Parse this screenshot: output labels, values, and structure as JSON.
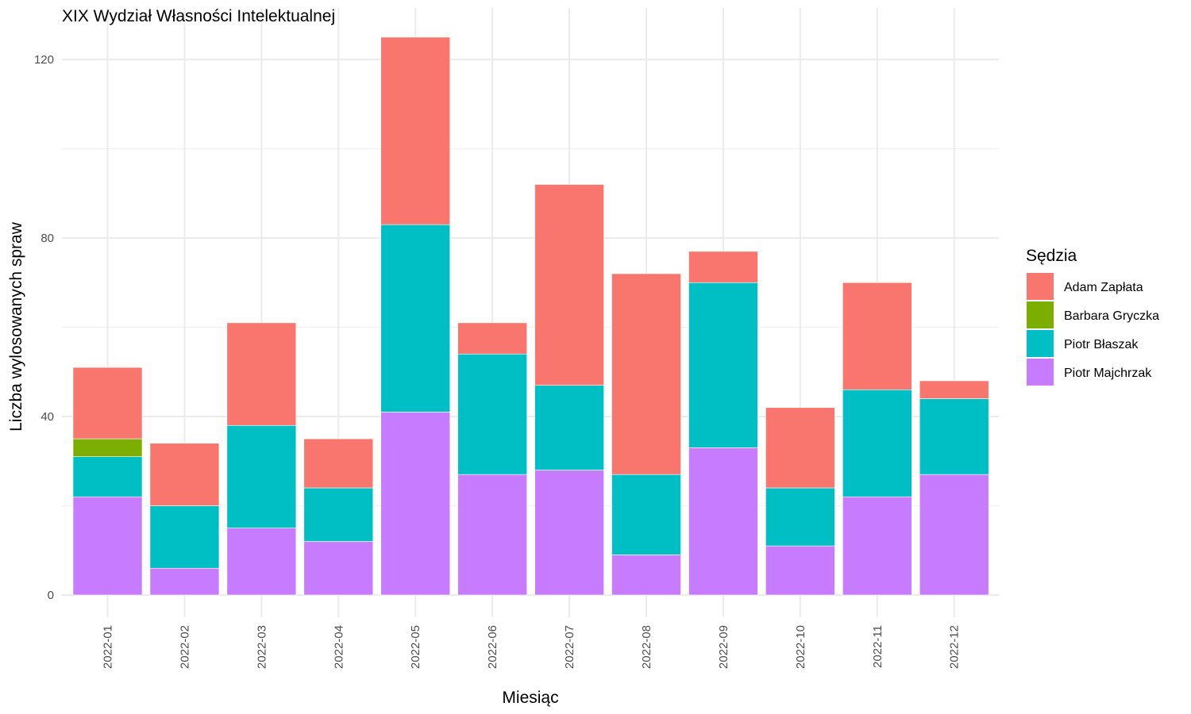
{
  "chart_data": {
    "type": "bar",
    "stacked": true,
    "title": "XIX Wydział Własności Intelektualnej",
    "xlabel": "Miesiąc",
    "ylabel": "Liczba wylosowanych spraw",
    "ylim": [
      0,
      126
    ],
    "yticks": [
      0,
      40,
      80,
      120
    ],
    "grid": true,
    "legend_title": "Sędzia",
    "legend_position": "right",
    "categories": [
      "2022-01",
      "2022-02",
      "2022-03",
      "2022-04",
      "2022-05",
      "2022-06",
      "2022-07",
      "2022-08",
      "2022-09",
      "2022-10",
      "2022-11",
      "2022-12"
    ],
    "series": [
      {
        "name": "Adam Zapłata",
        "color": "#F8766D",
        "values": [
          16,
          14,
          23,
          11,
          42,
          7,
          45,
          45,
          7,
          18,
          24,
          4
        ]
      },
      {
        "name": "Barbara Gryczka",
        "color": "#7CAE00",
        "values": [
          4,
          0,
          0,
          0,
          0,
          0,
          0,
          0,
          0,
          0,
          0,
          0
        ]
      },
      {
        "name": "Piotr Błaszak",
        "color": "#00BFC4",
        "values": [
          9,
          14,
          23,
          12,
          42,
          27,
          19,
          18,
          37,
          13,
          24,
          17
        ]
      },
      {
        "name": "Piotr Majchrzak",
        "color": "#C77CFF",
        "values": [
          22,
          6,
          15,
          12,
          41,
          27,
          28,
          9,
          33,
          11,
          22,
          27
        ]
      }
    ]
  }
}
